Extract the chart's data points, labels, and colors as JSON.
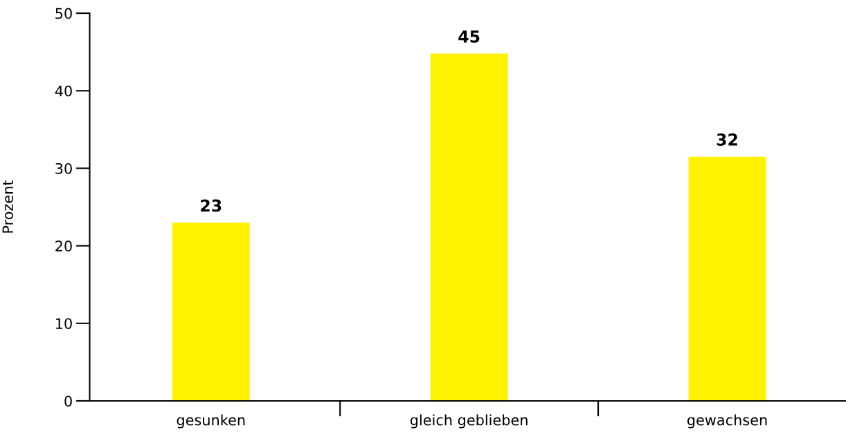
{
  "chart_data": {
    "type": "bar",
    "ylabel": "Prozent",
    "categories": [
      "gesunken",
      "gleich geblieben",
      "gewachsen"
    ],
    "values": [
      23,
      44.8,
      31.5
    ],
    "value_labels": [
      "23",
      "45",
      "32"
    ],
    "color": "#fff200",
    "ylim": [
      0,
      50
    ],
    "yticks": [
      0,
      10,
      20,
      30,
      40,
      50
    ],
    "grid": false,
    "legend": false
  }
}
